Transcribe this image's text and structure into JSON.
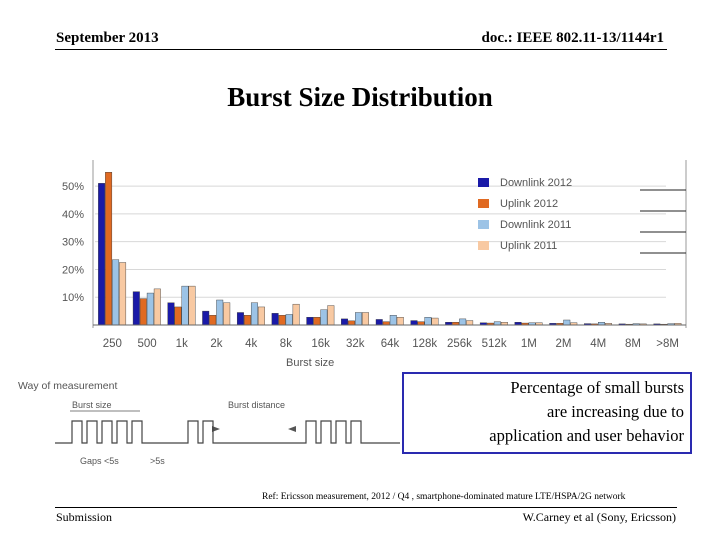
{
  "header": {
    "date": "September 2013",
    "doc_id": "doc.: IEEE 802.11-13/1144r1"
  },
  "slide_title": "Burst Size Distribution",
  "chart_data": {
    "type": "bar",
    "categories": [
      "250",
      "500",
      "1k",
      "2k",
      "4k",
      "8k",
      "16k",
      "32k",
      "64k",
      "128k",
      "256k",
      "512k",
      "1M",
      "2M",
      "4M",
      "8M",
      ">8M"
    ],
    "yticks": [
      "10%",
      "20%",
      "30%",
      "40%",
      "50%"
    ],
    "ylim": [
      0,
      58
    ],
    "xlabel": "Burst size",
    "legend_position": "top-right",
    "series": [
      {
        "name": "Downlink 2012",
        "color": "#1a1aa8",
        "values": [
          51,
          12,
          8,
          5,
          4.5,
          4.2,
          2.8,
          2.2,
          2,
          1.6,
          1,
          0.8,
          1,
          0.6,
          0.5,
          0.4,
          0.4
        ]
      },
      {
        "name": "Uplink 2012",
        "color": "#e06a22",
        "values": [
          55,
          9.5,
          6.5,
          3.5,
          3.5,
          3.5,
          2.8,
          1.5,
          1.2,
          1.2,
          1,
          0.7,
          0.7,
          0.6,
          0.4,
          0.3,
          0.3
        ]
      },
      {
        "name": "Downlink 2011",
        "color": "#9cc3e6",
        "values": [
          23.5,
          11.5,
          14,
          9,
          8,
          3.8,
          5.5,
          4.5,
          3.5,
          2.8,
          2.2,
          1.2,
          0.8,
          1.8,
          1,
          0.5,
          0.5
        ]
      },
      {
        "name": "Uplink 2011",
        "color": "#f8c9a2",
        "values": [
          22.5,
          13,
          14,
          8,
          6.5,
          7.5,
          7,
          4.5,
          2.8,
          2.5,
          1.6,
          1,
          0.8,
          0.8,
          0.6,
          0.4,
          0.6
        ]
      }
    ]
  },
  "measurement": {
    "title": "Way of measurement",
    "burst_size_label": "Burst size",
    "burst_distance_label": "Burst distance",
    "gaps_label": "Gaps <5s",
    "gt_label": ">5s"
  },
  "callout": {
    "line1": "Percentage of small bursts",
    "line2": "are increasing due to",
    "line3": "application and user behavior"
  },
  "reference": "Ref: Ericsson measurement, 2012 / Q4 , smartphone-dominated mature LTE/HSPA/2G network",
  "footer": {
    "left": "Submission",
    "right": "W.Carney et al  (Sony, Ericsson)"
  }
}
